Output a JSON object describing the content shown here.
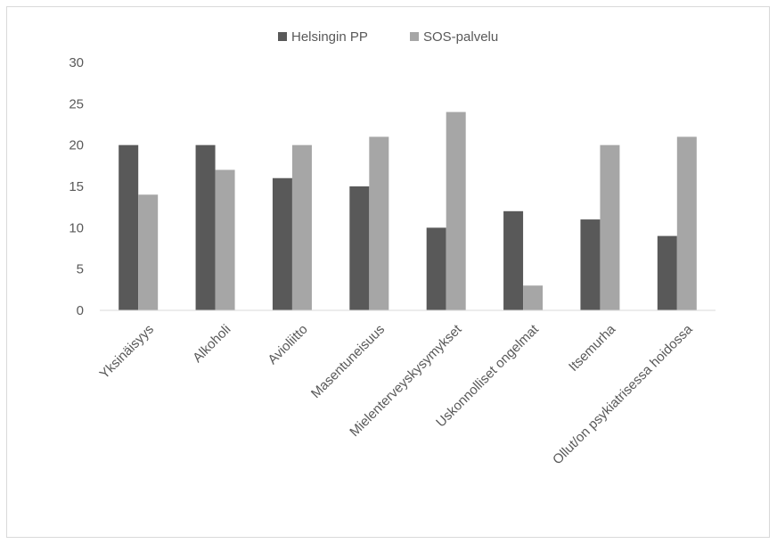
{
  "chart_data": {
    "type": "bar",
    "categories": [
      "Yksinäisyys",
      "Alkoholi",
      "Avioliitto",
      "Masentuneisuus",
      "Mielenterveyskysymykset",
      "Uskonnolliset ongelmat",
      "Itsemurha",
      "Ollut/on psykiatrisessa hoidossa"
    ],
    "series": [
      {
        "name": "Helsingin PP",
        "color": "#595959",
        "values": [
          20,
          20,
          16,
          15,
          10,
          12,
          11,
          9
        ]
      },
      {
        "name": "SOS-palvelu",
        "color": "#a6a6a6",
        "values": [
          14,
          17,
          20,
          21,
          24,
          3,
          20,
          21
        ]
      }
    ],
    "yticks": [
      "0",
      "5",
      "10",
      "15",
      "20",
      "25",
      "30"
    ],
    "ylim": [
      0,
      30
    ],
    "grid": false,
    "legend_position": "top",
    "title": "",
    "xlabel": "",
    "ylabel": ""
  }
}
